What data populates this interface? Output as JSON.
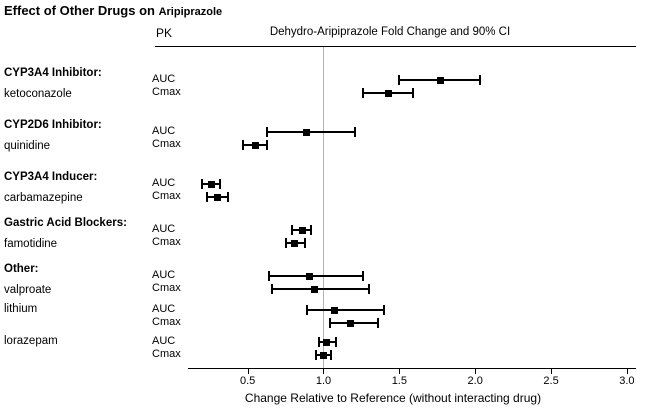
{
  "chart_data": {
    "type": "forest",
    "title_main": "Effect of Other Drugs on",
    "title_drug": "Aripiprazole",
    "pk_header": "PK",
    "plot_title": "Dehydro-Aripiprazole Fold Change and 90% CI",
    "xlabel": "Change Relative to Reference (without interacting drug)",
    "ci_level": "90% CI",
    "x_min": 0.12,
    "x_max": 3.06,
    "x_ticks": [
      0.5,
      1.0,
      1.5,
      2.0,
      2.5,
      3.0
    ],
    "reference_line": 1.0,
    "grid": false,
    "marker": "filled-square",
    "colors": {
      "marker": "#000000",
      "reference_line": "#b3b3b3",
      "text": "#000000",
      "background": "#ffffff"
    },
    "groups": [
      {
        "category": "CYP3A4 Inhibitor:",
        "drug": "ketoconazole",
        "measures": [
          {
            "pk": "AUC",
            "est": 1.77,
            "lo": 1.5,
            "hi": 2.03
          },
          {
            "pk": "Cmax",
            "est": 1.43,
            "lo": 1.26,
            "hi": 1.59
          }
        ]
      },
      {
        "category": "CYP2D6 Inhibitor:",
        "drug": "quinidine",
        "measures": [
          {
            "pk": "AUC",
            "est": 0.89,
            "lo": 0.63,
            "hi": 1.21
          },
          {
            "pk": "Cmax",
            "est": 0.55,
            "lo": 0.47,
            "hi": 0.63
          }
        ]
      },
      {
        "category": "CYP3A4 Inducer:",
        "drug": "carbamazepine",
        "measures": [
          {
            "pk": "AUC",
            "est": 0.26,
            "lo": 0.2,
            "hi": 0.32
          },
          {
            "pk": "Cmax",
            "est": 0.3,
            "lo": 0.23,
            "hi": 0.37
          }
        ]
      },
      {
        "category": "Gastric Acid Blockers:",
        "drug": "famotidine",
        "measures": [
          {
            "pk": "AUC",
            "est": 0.86,
            "lo": 0.79,
            "hi": 0.92
          },
          {
            "pk": "Cmax",
            "est": 0.81,
            "lo": 0.75,
            "hi": 0.88
          }
        ]
      },
      {
        "category": "Other:",
        "drug": "valproate",
        "measures": [
          {
            "pk": "AUC",
            "est": 0.91,
            "lo": 0.64,
            "hi": 1.26
          },
          {
            "pk": "Cmax",
            "est": 0.94,
            "lo": 0.66,
            "hi": 1.3
          }
        ]
      },
      {
        "category": "",
        "drug": "lithium",
        "measures": [
          {
            "pk": "AUC",
            "est": 1.07,
            "lo": 0.89,
            "hi": 1.4
          },
          {
            "pk": "Cmax",
            "est": 1.18,
            "lo": 1.04,
            "hi": 1.36
          }
        ]
      },
      {
        "category": "",
        "drug": "lorazepam",
        "measures": [
          {
            "pk": "AUC",
            "est": 1.02,
            "lo": 0.97,
            "hi": 1.08
          },
          {
            "pk": "Cmax",
            "est": 1.0,
            "lo": 0.95,
            "hi": 1.05
          }
        ]
      }
    ]
  }
}
